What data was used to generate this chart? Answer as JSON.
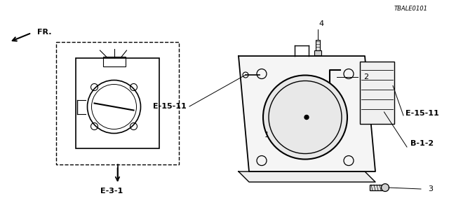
{
  "title": "",
  "background_color": "#ffffff",
  "diagram_code": "TBALE0101",
  "labels": {
    "E31": "E-3-1",
    "B12": "B-1-2",
    "E1511a": "E-15-11",
    "E1511b": "E-15-11",
    "FR": "FR.",
    "num1": "1",
    "num2": "2",
    "num3": "3",
    "num4": "4"
  },
  "colors": {
    "line": "#000000",
    "background": "#ffffff",
    "dashed_box": "#000000",
    "text": "#000000"
  }
}
